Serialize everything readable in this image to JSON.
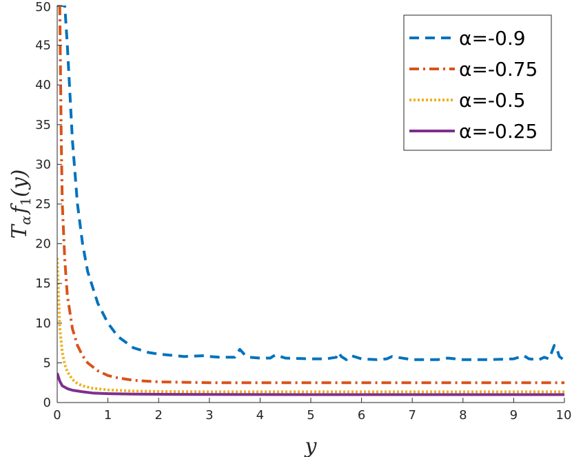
{
  "chart_data": {
    "type": "line",
    "xlabel": "y",
    "ylabel_main": "T",
    "ylabel_sub": "α",
    "ylabel_rest": "f",
    "ylabel_sub2": "1",
    "ylabel_args": "(y)",
    "xlim": [
      0,
      10
    ],
    "ylim": [
      0,
      50
    ],
    "xticks": [
      "0",
      "1",
      "2",
      "3",
      "4",
      "5",
      "6",
      "7",
      "8",
      "9",
      "10"
    ],
    "yticks": [
      "0",
      "5",
      "10",
      "15",
      "20",
      "25",
      "30",
      "35",
      "40",
      "45",
      "50"
    ],
    "legend_position": "top-right",
    "series": [
      {
        "name": "α=-0.9",
        "color": "#0072BD",
        "style": "dashed",
        "x": [
          0.0,
          0.1,
          0.15,
          0.2,
          0.3,
          0.4,
          0.5,
          0.6,
          0.8,
          1.0,
          1.2,
          1.5,
          1.8,
          2.0,
          2.5,
          2.9,
          3.0,
          3.2,
          3.5,
          3.6,
          3.7,
          3.8,
          4.0,
          4.2,
          4.3,
          4.5,
          5.0,
          5.3,
          5.5,
          5.55,
          5.6,
          5.7,
          5.8,
          6.0,
          6.3,
          6.5,
          6.6,
          7.0,
          7.5,
          7.7,
          8.0,
          8.5,
          9.0,
          9.2,
          9.3,
          9.5,
          9.6,
          9.7,
          9.8,
          9.85,
          9.9,
          10.0
        ],
        "y": [
          50,
          50,
          50,
          45,
          33,
          25,
          20,
          16.5,
          12.5,
          10,
          8.3,
          6.9,
          6.3,
          6.1,
          5.8,
          5.9,
          5.8,
          5.7,
          5.7,
          6.7,
          6.0,
          5.7,
          5.6,
          5.6,
          6.0,
          5.6,
          5.5,
          5.5,
          5.7,
          6.3,
          5.8,
          5.4,
          5.9,
          5.5,
          5.4,
          5.5,
          5.8,
          5.4,
          5.4,
          5.6,
          5.4,
          5.4,
          5.5,
          5.9,
          5.5,
          5.4,
          5.7,
          5.5,
          7.2,
          6.8,
          5.8,
          5.3
        ]
      },
      {
        "name": "α=-0.75",
        "color": "#D95319",
        "style": "dashdot",
        "x": [
          0.05,
          0.08,
          0.1,
          0.15,
          0.2,
          0.3,
          0.4,
          0.5,
          0.6,
          0.8,
          1.0,
          1.2,
          1.5,
          2.0,
          2.5,
          3.0,
          4.0,
          5.0,
          6.0,
          7.0,
          8.0,
          9.0,
          10.0
        ],
        "y": [
          50,
          33,
          25,
          18,
          13.5,
          9.3,
          7.2,
          5.9,
          5.0,
          4.0,
          3.4,
          3.1,
          2.8,
          2.6,
          2.55,
          2.5,
          2.5,
          2.5,
          2.5,
          2.5,
          2.5,
          2.5,
          2.5
        ]
      },
      {
        "name": "α=-0.5",
        "color": "#EDB120",
        "style": "dotted",
        "x": [
          0.0,
          0.05,
          0.1,
          0.15,
          0.2,
          0.3,
          0.4,
          0.5,
          0.7,
          1.0,
          1.5,
          2.0,
          3.0,
          4.0,
          5.0,
          6.0,
          7.0,
          8.0,
          9.0,
          10.0
        ],
        "y": [
          18.2,
          9.5,
          6.3,
          4.8,
          3.9,
          2.9,
          2.4,
          2.1,
          1.8,
          1.6,
          1.45,
          1.4,
          1.35,
          1.35,
          1.35,
          1.35,
          1.35,
          1.35,
          1.35,
          1.35
        ]
      },
      {
        "name": "α=-0.25",
        "color": "#7E2F8E",
        "style": "solid",
        "x": [
          0.0,
          0.05,
          0.1,
          0.2,
          0.3,
          0.5,
          0.7,
          1.0,
          1.5,
          2.0,
          3.0,
          4.0,
          5.0,
          6.0,
          7.0,
          8.0,
          9.0,
          10.0
        ],
        "y": [
          3.7,
          2.7,
          2.1,
          1.75,
          1.55,
          1.35,
          1.2,
          1.12,
          1.06,
          1.04,
          1.02,
          1.01,
          1.0,
          1.0,
          1.0,
          1.0,
          1.0,
          1.0
        ]
      }
    ]
  }
}
